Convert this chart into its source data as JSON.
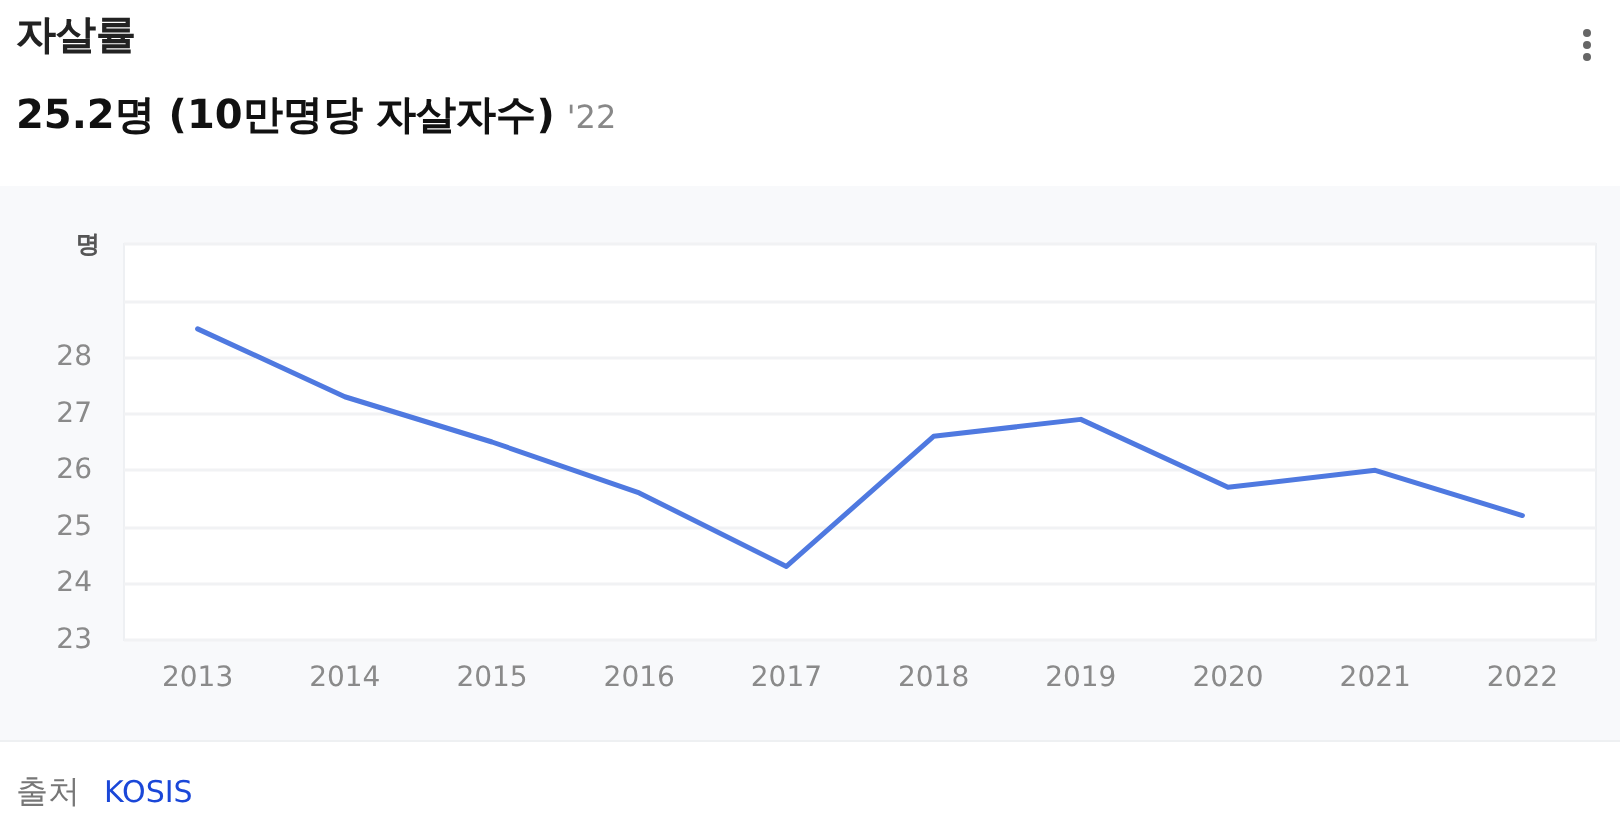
{
  "chart_data": {
    "type": "line",
    "title": "자살률",
    "subtitle": "25.2명 (10만명당 자살자수)",
    "ylabel": "명",
    "annotations": [
      "'22",
      "출처 KOSIS"
    ],
    "categories": [
      "2013",
      "2014",
      "2015",
      "2016",
      "2017",
      "2018",
      "2019",
      "2020",
      "2021",
      "2022"
    ],
    "values": [
      28.5,
      27.3,
      26.5,
      25.6,
      24.3,
      26.6,
      26.9,
      25.7,
      26.0,
      25.2
    ],
    "color": "#4f79e0",
    "ylim": [
      23,
      30
    ],
    "yticks": [
      23,
      24,
      25,
      26,
      27,
      28,
      {
        "value": 29,
        "label": null
      },
      {
        "value": 30,
        "label": null
      }
    ],
    "grid": "y",
    "marker": "none",
    "line_style": "solid"
  }
}
